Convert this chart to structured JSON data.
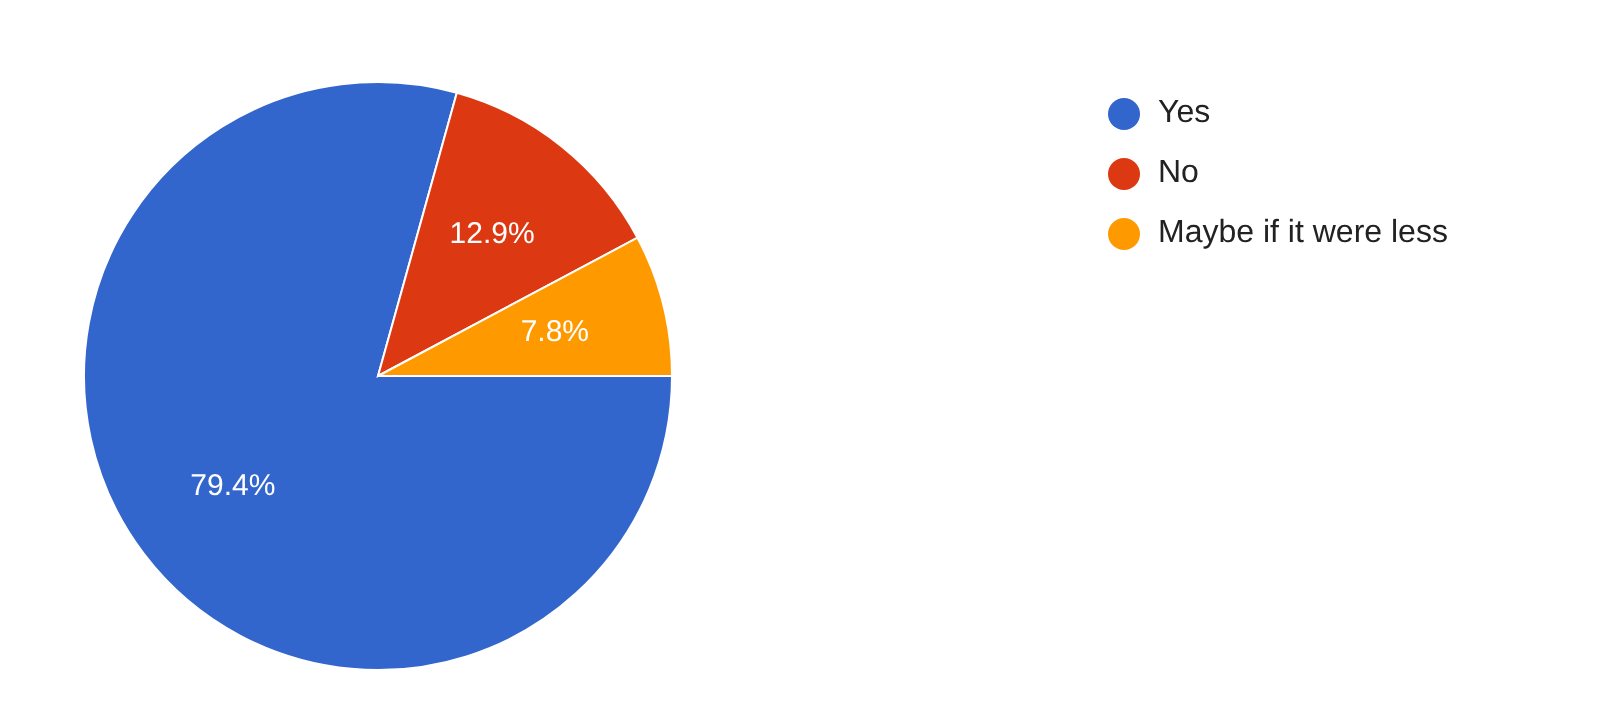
{
  "chart_data": {
    "type": "pie",
    "categories": [
      "Yes",
      "No",
      "Maybe if it were less"
    ],
    "values": [
      79.4,
      12.9,
      7.8
    ],
    "colors": [
      "#3366cc",
      "#dc3912",
      "#ff9900"
    ],
    "value_labels": [
      "79.4%",
      "12.9%",
      "7.8%"
    ],
    "legend": "top right"
  }
}
